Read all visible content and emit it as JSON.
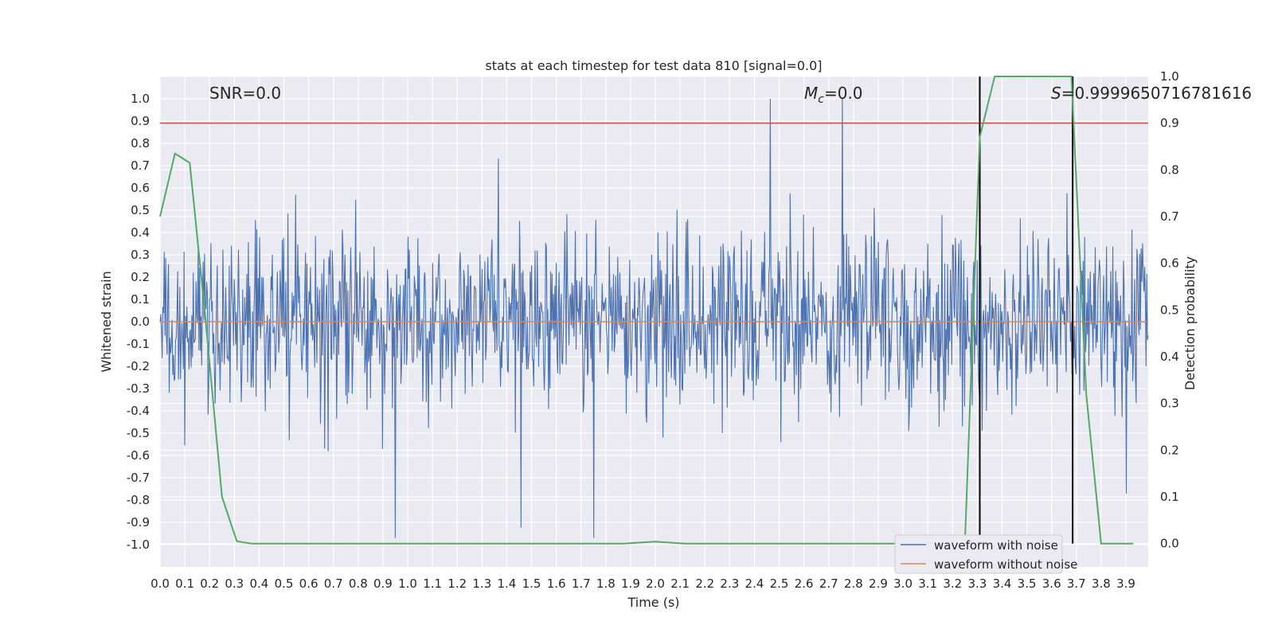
{
  "chart_data": {
    "type": "line",
    "title": "stats at each timestep for test data 810 [signal=0.0]",
    "xlabel": "Time (s)",
    "ylabel": "Whitened strain",
    "y2label": "Detection probability",
    "xlim": [
      0.0,
      3.99
    ],
    "ylim": [
      -1.1,
      1.1
    ],
    "y2lim": [
      -0.05,
      1.0
    ],
    "grid": true,
    "x_ticks": [
      "0.0",
      "0.1",
      "0.2",
      "0.3",
      "0.4",
      "0.5",
      "0.6",
      "0.7",
      "0.8",
      "0.9",
      "1.0",
      "1.1",
      "1.2",
      "1.3",
      "1.4",
      "1.5",
      "1.6",
      "1.7",
      "1.8",
      "1.9",
      "2.0",
      "2.1",
      "2.2",
      "2.3",
      "2.4",
      "2.5",
      "2.6",
      "2.7",
      "2.8",
      "2.9",
      "3.0",
      "3.1",
      "3.2",
      "3.3",
      "3.4",
      "3.5",
      "3.6",
      "3.7",
      "3.8",
      "3.9"
    ],
    "y_ticks": [
      "1.0",
      "0.9",
      "0.8",
      "0.7",
      "0.6",
      "0.5",
      "0.4",
      "0.3",
      "0.2",
      "0.1",
      "0.0",
      "-0.1",
      "-0.2",
      "-0.3",
      "-0.4",
      "-0.5",
      "-0.6",
      "-0.7",
      "-0.8",
      "-0.9",
      "-1.0"
    ],
    "y2_ticks": [
      "1.0",
      "0.9",
      "0.8",
      "0.7",
      "0.6",
      "0.5",
      "0.4",
      "0.3",
      "0.2",
      "0.1",
      "0.0"
    ],
    "annotations": {
      "snr": "SNR=0.0",
      "mc_symbol": "M",
      "mc_sub": "c",
      "mc_value": "=0.0",
      "s_symbol": "S",
      "s_value": "=0.9999650716781616"
    },
    "threshold": {
      "y2": 0.9,
      "color": "#c44e52"
    },
    "vertical_lines": {
      "x": [
        3.31,
        3.685
      ],
      "y2_range": [
        0.0,
        1.0
      ],
      "color": "#000000"
    },
    "series": [
      {
        "name": "waveform with noise",
        "color": "#4c72b0"
      },
      {
        "name": "waveform without noise",
        "color": "#dd8452",
        "y": 0.0
      }
    ],
    "detection_probability": {
      "color": "#55a868",
      "x": [
        0.0,
        0.06,
        0.12,
        0.18,
        0.25,
        0.31,
        0.37,
        0.5,
        1.0,
        1.5,
        1.87,
        2.0,
        2.12,
        2.5,
        3.0,
        3.1,
        3.18,
        3.25,
        3.31,
        3.37,
        3.5,
        3.6,
        3.68,
        3.74,
        3.8,
        3.86,
        3.93
      ],
      "y": [
        0.7,
        0.835,
        0.815,
        0.5,
        0.1,
        0.005,
        0.0,
        0.0,
        0.0,
        0.0,
        0.0,
        0.004,
        0.0,
        0.0,
        0.0,
        0.0,
        0.0,
        0.0,
        0.87,
        1.0,
        1.0,
        1.0,
        1.0,
        0.32,
        0.0,
        0.0,
        0.0
      ]
    },
    "legend": {
      "placement": "lower right"
    }
  }
}
